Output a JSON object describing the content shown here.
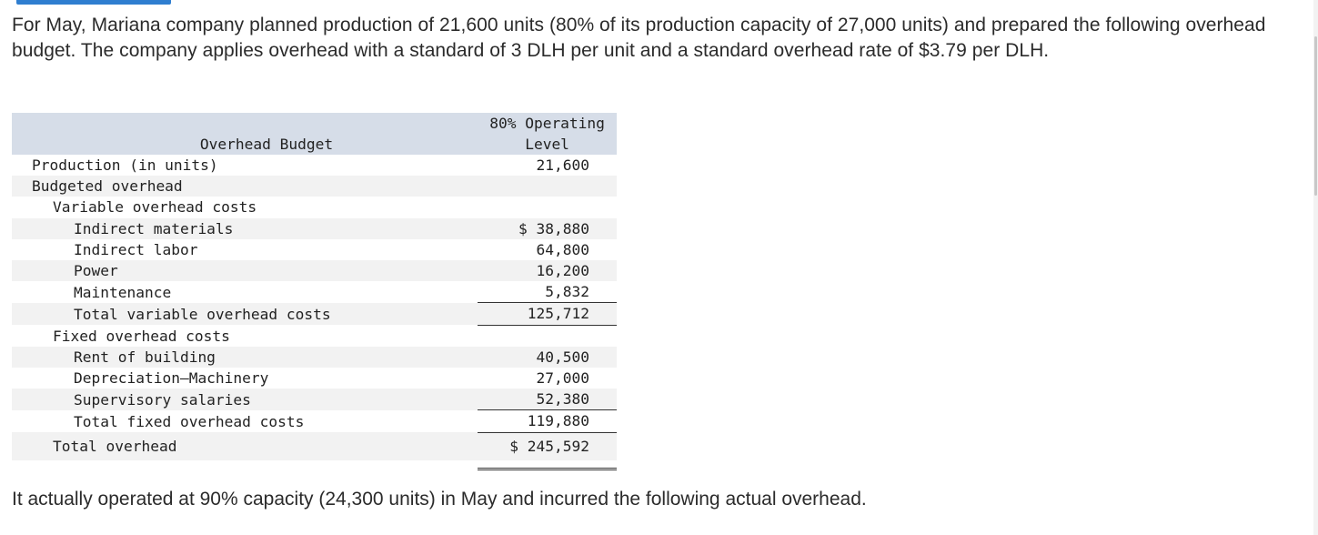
{
  "intro_text": "For May, Mariana company planned production of 21,600 units (80% of its production capacity of 27,000 units) and prepared the following overhead budget. The company applies overhead with a standard of 3 DLH per unit and a standard overhead rate of $3.79 per DLH.",
  "budget": {
    "header_label": "Overhead Budget",
    "header_col_line1": "80% Operating",
    "header_col_line2": "Level",
    "rows": {
      "production": {
        "label": "Production (in units)",
        "value": "21,600"
      },
      "budgeted_overhead": {
        "label": "Budgeted overhead"
      },
      "variable_heading": {
        "label": "Variable overhead costs"
      },
      "indirect_materials": {
        "label": "Indirect materials",
        "value": "$ 38,880"
      },
      "indirect_labor": {
        "label": "Indirect labor",
        "value": "64,800"
      },
      "power": {
        "label": "Power",
        "value": "16,200"
      },
      "maintenance": {
        "label": "Maintenance",
        "value": "5,832"
      },
      "total_variable": {
        "label": "Total variable overhead costs",
        "value": "125,712"
      },
      "fixed_heading": {
        "label": "Fixed overhead costs"
      },
      "rent": {
        "label": "Rent of building",
        "value": "40,500"
      },
      "depreciation": {
        "label": "Depreciation—Machinery",
        "value": "27,000"
      },
      "supervisory": {
        "label": "Supervisory salaries",
        "value": "52,380"
      },
      "total_fixed": {
        "label": "Total fixed overhead costs",
        "value": "119,880"
      },
      "total_overhead": {
        "label": "Total overhead",
        "value": "$ 245,592"
      }
    }
  },
  "outro_text": "It actually operated at 90% capacity (24,300 units) in May and incurred the following actual overhead."
}
